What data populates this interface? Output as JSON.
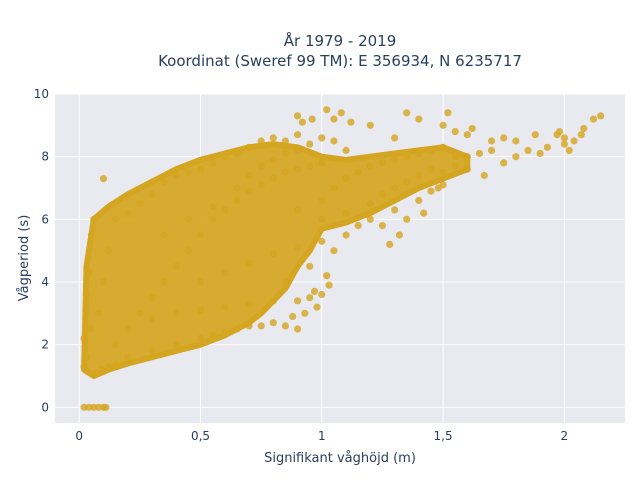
{
  "chart_data": {
    "type": "scatter",
    "title_line1": "År 1979 - 2019",
    "title_line2": "Koordinat (Sweref 99 TM): E 356934, N 6235717",
    "xlabel": "Signifikant våghöjd (m)",
    "ylabel": "Vågperiod (s)",
    "xlim": [
      -0.1,
      2.25
    ],
    "ylim": [
      -0.5,
      10
    ],
    "xticks": [
      0,
      0.5,
      1,
      1.5,
      2
    ],
    "xtick_labels": [
      "0",
      "0,5",
      "1",
      "1,5",
      "2"
    ],
    "yticks": [
      0,
      2,
      4,
      6,
      8,
      10
    ],
    "ytick_labels": [
      "0",
      "2",
      "4",
      "6",
      "8",
      "10"
    ],
    "grid": true,
    "background": "#e9e9f0",
    "marker_color": "#d4a520",
    "points": [
      [
        0.02,
        0
      ],
      [
        0.04,
        0
      ],
      [
        0.06,
        0
      ],
      [
        0.08,
        0
      ],
      [
        0.1,
        0
      ],
      [
        0.11,
        0
      ],
      [
        0.02,
        1.3
      ],
      [
        0.03,
        1.6
      ],
      [
        0.02,
        2.2
      ],
      [
        0.03,
        3.6
      ],
      [
        0.04,
        4.3
      ],
      [
        0.05,
        5.5
      ],
      [
        0.06,
        6.0
      ],
      [
        0.07,
        1.1
      ],
      [
        0.09,
        1.2
      ],
      [
        0.12,
        1.3
      ],
      [
        0.15,
        1.35
      ],
      [
        0.1,
        7.3
      ],
      [
        0.05,
        2.5
      ],
      [
        0.08,
        3.0
      ],
      [
        0.1,
        4.0
      ],
      [
        0.12,
        5.0
      ],
      [
        0.15,
        6.0
      ],
      [
        0.2,
        6.2
      ],
      [
        0.25,
        6.5
      ],
      [
        0.3,
        6.8
      ],
      [
        0.35,
        7.2
      ],
      [
        0.4,
        7.4
      ],
      [
        0.45,
        7.5
      ],
      [
        0.5,
        7.6
      ],
      [
        0.55,
        7.8
      ],
      [
        0.6,
        8.0
      ],
      [
        0.65,
        8.1
      ],
      [
        0.15,
        2.0
      ],
      [
        0.2,
        2.5
      ],
      [
        0.25,
        3.0
      ],
      [
        0.3,
        3.5
      ],
      [
        0.35,
        4.0
      ],
      [
        0.4,
        4.5
      ],
      [
        0.45,
        5.0
      ],
      [
        0.5,
        5.5
      ],
      [
        0.55,
        6.0
      ],
      [
        0.6,
        6.3
      ],
      [
        0.65,
        6.6
      ],
      [
        0.7,
        6.9
      ],
      [
        0.75,
        7.1
      ],
      [
        0.8,
        7.3
      ],
      [
        0.85,
        7.5
      ],
      [
        0.9,
        7.6
      ],
      [
        0.95,
        7.7
      ],
      [
        1.0,
        7.8
      ],
      [
        0.2,
        1.6
      ],
      [
        0.3,
        1.8
      ],
      [
        0.4,
        2.0
      ],
      [
        0.5,
        2.2
      ],
      [
        0.55,
        2.3
      ],
      [
        0.6,
        2.4
      ],
      [
        0.65,
        2.5
      ],
      [
        0.7,
        2.6
      ],
      [
        0.75,
        2.6
      ],
      [
        0.8,
        2.7
      ],
      [
        0.85,
        2.6
      ],
      [
        0.9,
        2.5
      ],
      [
        0.3,
        2.8
      ],
      [
        0.4,
        3.0
      ],
      [
        0.5,
        3.1
      ],
      [
        0.6,
        3.2
      ],
      [
        0.7,
        3.3
      ],
      [
        0.8,
        3.4
      ],
      [
        0.9,
        3.4
      ],
      [
        0.95,
        3.5
      ],
      [
        1.0,
        3.6
      ],
      [
        0.5,
        4.0
      ],
      [
        0.6,
        4.3
      ],
      [
        0.7,
        4.6
      ],
      [
        0.8,
        4.9
      ],
      [
        0.9,
        5.1
      ],
      [
        1.0,
        5.3
      ],
      [
        0.95,
        4.5
      ],
      [
        0.85,
        4.0
      ],
      [
        0.7,
        8.3
      ],
      [
        0.75,
        8.5
      ],
      [
        0.8,
        8.6
      ],
      [
        0.85,
        8.5
      ],
      [
        0.9,
        8.7
      ],
      [
        0.95,
        8.4
      ],
      [
        1.0,
        8.6
      ],
      [
        1.05,
        8.5
      ],
      [
        1.1,
        8.2
      ],
      [
        0.9,
        6.3
      ],
      [
        1.0,
        6.6
      ],
      [
        1.05,
        7.0
      ],
      [
        1.1,
        7.3
      ],
      [
        1.15,
        7.5
      ],
      [
        1.2,
        7.7
      ],
      [
        1.25,
        7.8
      ],
      [
        1.3,
        7.9
      ],
      [
        1.35,
        8.0
      ],
      [
        1.4,
        8.1
      ],
      [
        1.45,
        8.2
      ],
      [
        1.5,
        8.3
      ],
      [
        1.55,
        8.0
      ],
      [
        1.6,
        8.0
      ],
      [
        1.65,
        8.1
      ],
      [
        1.7,
        8.2
      ],
      [
        1.0,
        6.0
      ],
      [
        1.1,
        6.2
      ],
      [
        1.2,
        6.5
      ],
      [
        1.25,
        6.8
      ],
      [
        1.3,
        7.0
      ],
      [
        1.35,
        7.2
      ],
      [
        1.4,
        7.4
      ],
      [
        1.45,
        7.6
      ],
      [
        1.5,
        7.5
      ],
      [
        1.55,
        7.7
      ],
      [
        1.6,
        7.6
      ],
      [
        1.05,
        5.0
      ],
      [
        1.1,
        5.5
      ],
      [
        1.15,
        5.8
      ],
      [
        1.2,
        6.0
      ],
      [
        1.25,
        5.8
      ],
      [
        1.3,
        6.3
      ],
      [
        0.9,
        9.3
      ],
      [
        0.92,
        9.1
      ],
      [
        0.96,
        9.2
      ],
      [
        1.02,
        9.5
      ],
      [
        1.05,
        9.2
      ],
      [
        1.08,
        9.4
      ],
      [
        1.12,
        9.1
      ],
      [
        1.2,
        9.0
      ],
      [
        1.3,
        8.6
      ],
      [
        1.35,
        9.4
      ],
      [
        1.4,
        9.2
      ],
      [
        1.5,
        9.0
      ],
      [
        1.52,
        9.4
      ],
      [
        1.55,
        8.8
      ],
      [
        1.6,
        8.7
      ],
      [
        1.62,
        8.9
      ],
      [
        1.7,
        8.5
      ],
      [
        1.75,
        8.6
      ],
      [
        1.8,
        8.5
      ],
      [
        1.85,
        8.2
      ],
      [
        1.9,
        8.1
      ],
      [
        1.93,
        8.3
      ],
      [
        1.97,
        8.7
      ],
      [
        2.0,
        8.6
      ],
      [
        2.04,
        8.5
      ],
      [
        1.88,
        8.7
      ],
      [
        1.98,
        8.8
      ],
      [
        1.75,
        7.8
      ],
      [
        1.8,
        8.0
      ],
      [
        1.67,
        7.4
      ],
      [
        2.0,
        8.4
      ],
      [
        2.07,
        8.7
      ],
      [
        2.08,
        8.9
      ],
      [
        2.12,
        9.2
      ],
      [
        2.15,
        9.3
      ],
      [
        2.02,
        8.2
      ],
      [
        0.35,
        5.5
      ],
      [
        0.45,
        6.0
      ],
      [
        0.55,
        6.4
      ],
      [
        0.65,
        7.0
      ],
      [
        0.7,
        7.4
      ],
      [
        0.75,
        7.7
      ],
      [
        0.8,
        7.9
      ],
      [
        0.85,
        8.1
      ],
      [
        0.9,
        8.2
      ],
      [
        0.98,
        3.2
      ],
      [
        0.93,
        3.0
      ],
      [
        0.88,
        2.9
      ],
      [
        0.97,
        3.7
      ],
      [
        1.02,
        4.2
      ],
      [
        1.03,
        3.9
      ],
      [
        1.35,
        6.0
      ],
      [
        1.4,
        6.6
      ],
      [
        1.42,
        6.2
      ],
      [
        1.32,
        5.5
      ],
      [
        1.28,
        5.2
      ],
      [
        1.45,
        6.9
      ],
      [
        1.48,
        7.0
      ],
      [
        1.5,
        7.1
      ]
    ],
    "band": {
      "upper": [
        [
          0.02,
          1.2
        ],
        [
          0.03,
          4.5
        ],
        [
          0.06,
          6.0
        ],
        [
          0.12,
          6.4
        ],
        [
          0.2,
          6.8
        ],
        [
          0.3,
          7.2
        ],
        [
          0.4,
          7.6
        ],
        [
          0.5,
          7.9
        ],
        [
          0.6,
          8.1
        ],
        [
          0.7,
          8.3
        ],
        [
          0.8,
          8.4
        ],
        [
          0.9,
          8.3
        ],
        [
          1.0,
          8.0
        ],
        [
          1.1,
          7.9
        ],
        [
          1.2,
          8.0
        ],
        [
          1.3,
          8.1
        ],
        [
          1.4,
          8.2
        ],
        [
          1.5,
          8.3
        ],
        [
          1.6,
          8.0
        ]
      ],
      "lower": [
        [
          1.6,
          7.6
        ],
        [
          1.5,
          7.3
        ],
        [
          1.4,
          7.0
        ],
        [
          1.3,
          6.6
        ],
        [
          1.2,
          6.2
        ],
        [
          1.1,
          5.9
        ],
        [
          1.0,
          5.7
        ],
        [
          0.95,
          5.0
        ],
        [
          0.9,
          4.5
        ],
        [
          0.85,
          3.8
        ],
        [
          0.8,
          3.4
        ],
        [
          0.75,
          3.0
        ],
        [
          0.7,
          2.7
        ],
        [
          0.6,
          2.3
        ],
        [
          0.5,
          2.0
        ],
        [
          0.4,
          1.8
        ],
        [
          0.3,
          1.6
        ],
        [
          0.2,
          1.4
        ],
        [
          0.12,
          1.2
        ],
        [
          0.06,
          1.0
        ],
        [
          0.02,
          1.2
        ]
      ]
    }
  }
}
